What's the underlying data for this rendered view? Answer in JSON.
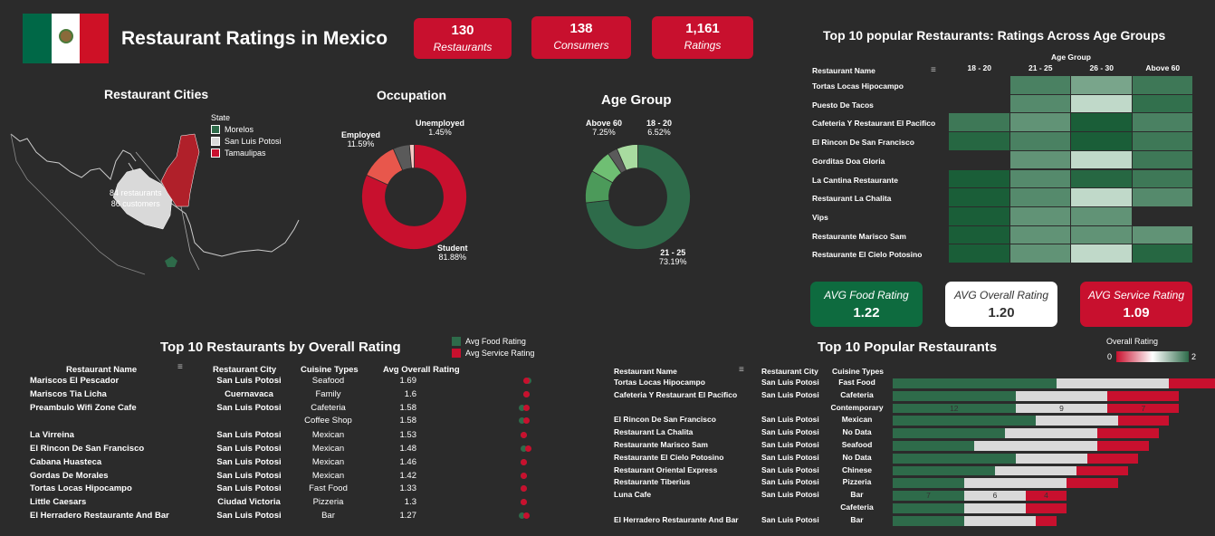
{
  "header": {
    "title": "Restaurant Ratings in Mexico",
    "kpis": [
      {
        "value": "130",
        "label": "Restaurants"
      },
      {
        "value": "138",
        "label": "Consumers"
      },
      {
        "value": "1,161",
        "label": "Ratings"
      }
    ]
  },
  "colors": {
    "green": "#006847",
    "red": "#c8102e",
    "white": "#ffffff",
    "bg": "#2b2b2b"
  },
  "map": {
    "title": "Restaurant Cities",
    "legend_title": "State",
    "legend": [
      {
        "label": "Morelos",
        "color": "#2e6b4a"
      },
      {
        "label": "San Luis Potosi",
        "color": "#d9d9d9"
      },
      {
        "label": "Tamaulipas",
        "color": "#c8102e"
      }
    ],
    "callout_line1": "84 restaurants",
    "callout_line2": "86 customers"
  },
  "chart_data": [
    {
      "type": "pie",
      "title": "Occupation",
      "slices": [
        {
          "label": "Student",
          "value": 81.88,
          "pct": "81.88%",
          "color": "#c8102e"
        },
        {
          "label": "Employed",
          "value": 11.59,
          "pct": "11.59%",
          "color": "#e8574c"
        },
        {
          "label": "",
          "value": 5.08,
          "pct": "",
          "color": "#5a5a5a"
        },
        {
          "label": "Unemployed",
          "value": 1.45,
          "pct": "1.45%",
          "color": "#f4c7c3"
        }
      ]
    },
    {
      "type": "pie",
      "title": "Age Group",
      "slices": [
        {
          "label": "21 - 25",
          "value": 73.19,
          "pct": "73.19%",
          "color": "#2e6b4a"
        },
        {
          "label": "",
          "value": 10.0,
          "pct": "",
          "color": "#4c9a5a"
        },
        {
          "label": "Above 60",
          "value": 7.25,
          "pct": "7.25%",
          "color": "#6fbf73"
        },
        {
          "label": "",
          "value": 3.04,
          "pct": "",
          "color": "#5a5a5a"
        },
        {
          "label": "18 - 20",
          "value": 6.52,
          "pct": "6.52%",
          "color": "#a8dba0"
        }
      ]
    },
    {
      "type": "heatmap",
      "title": "Top 10 popular Restaurants: Ratings Across Age Groups",
      "row_header": "Restaurant Name",
      "col_group_title": "Age Group",
      "columns": [
        "18 - 20",
        "21 - 25",
        "26 - 30",
        "Above 60"
      ],
      "rows": [
        {
          "name": "Tortas Locas Hipocampo",
          "values": [
            null,
            1.2,
            0.8,
            1.3
          ]
        },
        {
          "name": "Puesto De Tacos",
          "values": [
            null,
            1.1,
            0.2,
            1.4
          ]
        },
        {
          "name": "Cafeteria Y Restaurant El Pacifico",
          "values": [
            1.3,
            1.0,
            1.6,
            1.2
          ]
        },
        {
          "name": "El Rincon De San Francisco",
          "values": [
            1.5,
            1.2,
            1.6,
            1.3
          ]
        },
        {
          "name": "Gorditas Doa Gloria",
          "values": [
            null,
            1.0,
            0.2,
            1.3
          ]
        },
        {
          "name": "La Cantina Restaurante",
          "values": [
            1.6,
            1.1,
            1.5,
            1.3
          ]
        },
        {
          "name": "Restaurant La Chalita",
          "values": [
            1.6,
            1.1,
            0.2,
            1.1
          ]
        },
        {
          "name": "Vips",
          "values": [
            1.6,
            1.0,
            1.0,
            null
          ]
        },
        {
          "name": "Restaurante Marisco Sam",
          "values": [
            1.6,
            1.0,
            1.0,
            1.0
          ]
        },
        {
          "name": "Restaurante El Cielo Potosino",
          "values": [
            1.6,
            1.0,
            0.2,
            1.5
          ]
        }
      ]
    },
    {
      "type": "table",
      "title": "Top 10 Restaurants by Overall Rating",
      "legend": [
        "Avg Food Rating",
        "Avg Service Rating"
      ],
      "columns": [
        "Restaurant Name",
        "Restaurant City",
        "Cuisine Types",
        "Avg Overall Rating"
      ],
      "rows": [
        {
          "name": "Mariscos El Pescador",
          "city": "San Luis Potosi",
          "cuisine": "Seafood",
          "rating": "1.69",
          "food": 2.0,
          "service": 1.9
        },
        {
          "name": "Mariscos Tia Licha",
          "city": "Cuernavaca",
          "cuisine": "Family",
          "rating": "1.6",
          "food": 1.9,
          "service": 1.9
        },
        {
          "name": "Preambulo Wifi Zone Cafe",
          "city": "San Luis Potosi",
          "cuisine": "Cafeteria",
          "rating": "1.58",
          "food": 1.7,
          "service": 1.9
        },
        {
          "name": "",
          "city": "",
          "cuisine": "Coffee Shop",
          "rating": "1.58",
          "food": 1.7,
          "service": 1.9
        },
        {
          "name": "La Virreina",
          "city": "San Luis Potosi",
          "cuisine": "Mexican",
          "rating": "1.53",
          "food": 1.8,
          "service": 1.8
        },
        {
          "name": "El Rincon De San Francisco",
          "city": "San Luis Potosi",
          "cuisine": "Mexican",
          "rating": "1.48",
          "food": 1.8,
          "service": 2.0
        },
        {
          "name": "Cabana Huasteca",
          "city": "San Luis Potosi",
          "cuisine": "Mexican",
          "rating": "1.46",
          "food": 1.8,
          "service": 1.8
        },
        {
          "name": "Gordas De Morales",
          "city": "San Luis Potosi",
          "cuisine": "Mexican",
          "rating": "1.42",
          "food": 1.8,
          "service": 1.8
        },
        {
          "name": "Tortas Locas Hipocampo",
          "city": "San Luis Potosi",
          "cuisine": "Fast Food",
          "rating": "1.33",
          "food": 1.8,
          "service": 1.8
        },
        {
          "name": "Little Caesars",
          "city": "Ciudad Victoria",
          "cuisine": "Pizzeria",
          "rating": "1.3",
          "food": 1.8,
          "service": 1.8
        },
        {
          "name": "El Herradero Restaurante And Bar",
          "city": "San Luis Potosi",
          "cuisine": "Bar",
          "rating": "1.27",
          "food": 1.7,
          "service": 1.9
        }
      ]
    },
    {
      "type": "bar",
      "title": "Top 10 Popular Restaurants",
      "legend_title": "Overall Rating",
      "legend_min": "0",
      "legend_max": "2",
      "columns": [
        "Restaurant Name",
        "Restaurant City",
        "Cuisine Types"
      ],
      "series_names": [
        "2",
        "1",
        "0"
      ],
      "rows": [
        {
          "name": "Tortas Locas Hipocampo",
          "city": "San Luis Potosi",
          "cuisine": "Fast Food",
          "segs": [
            16,
            11,
            5
          ],
          "labels": [
            "",
            "",
            ""
          ]
        },
        {
          "name": "Cafeteria Y Restaurant El Pacifico",
          "city": "San Luis Potosi",
          "cuisine": "Cafeteria",
          "segs": [
            12,
            9,
            7
          ],
          "labels": [
            "",
            "",
            ""
          ]
        },
        {
          "name": "",
          "city": "",
          "cuisine": "Contemporary",
          "segs": [
            12,
            9,
            7
          ],
          "labels": [
            "12",
            "9",
            "7"
          ]
        },
        {
          "name": "El Rincon De San Francisco",
          "city": "San Luis Potosi",
          "cuisine": "Mexican",
          "segs": [
            14,
            8,
            5
          ],
          "labels": [
            "",
            "",
            ""
          ]
        },
        {
          "name": "Restaurant La Chalita",
          "city": "San Luis Potosi",
          "cuisine": "No Data",
          "segs": [
            11,
            9,
            6
          ],
          "labels": [
            "",
            "",
            ""
          ]
        },
        {
          "name": "Restaurante Marisco Sam",
          "city": "San Luis Potosi",
          "cuisine": "Seafood",
          "segs": [
            8,
            12,
            5
          ],
          "labels": [
            "",
            "",
            ""
          ]
        },
        {
          "name": "Restaurante El Cielo Potosino",
          "city": "San Luis Potosi",
          "cuisine": "No Data",
          "segs": [
            12,
            7,
            5
          ],
          "labels": [
            "",
            "",
            ""
          ]
        },
        {
          "name": "Restaurant Oriental Express",
          "city": "San Luis Potosi",
          "cuisine": "Chinese",
          "segs": [
            10,
            8,
            5
          ],
          "labels": [
            "",
            "",
            ""
          ]
        },
        {
          "name": "Restaurante Tiberius",
          "city": "San Luis Potosi",
          "cuisine": "Pizzeria",
          "segs": [
            7,
            10,
            5
          ],
          "labels": [
            "",
            "",
            ""
          ]
        },
        {
          "name": "Luna Cafe",
          "city": "San Luis Potosi",
          "cuisine": "Bar",
          "segs": [
            7,
            6,
            4
          ],
          "labels": [
            "7",
            "6",
            "4"
          ]
        },
        {
          "name": "",
          "city": "",
          "cuisine": "Cafeteria",
          "segs": [
            7,
            6,
            4
          ],
          "labels": [
            "",
            "",
            ""
          ]
        },
        {
          "name": "El Herradero Restaurante And Bar",
          "city": "San Luis Potosi",
          "cuisine": "Bar",
          "segs": [
            7,
            7,
            2
          ],
          "labels": [
            "",
            "",
            ""
          ]
        }
      ]
    }
  ],
  "avg_boxes": [
    {
      "label": "AVG Food Rating",
      "value": "1.22"
    },
    {
      "label": "AVG Overall Rating",
      "value": "1.20"
    },
    {
      "label": "AVG Service Rating",
      "value": "1.09"
    }
  ]
}
